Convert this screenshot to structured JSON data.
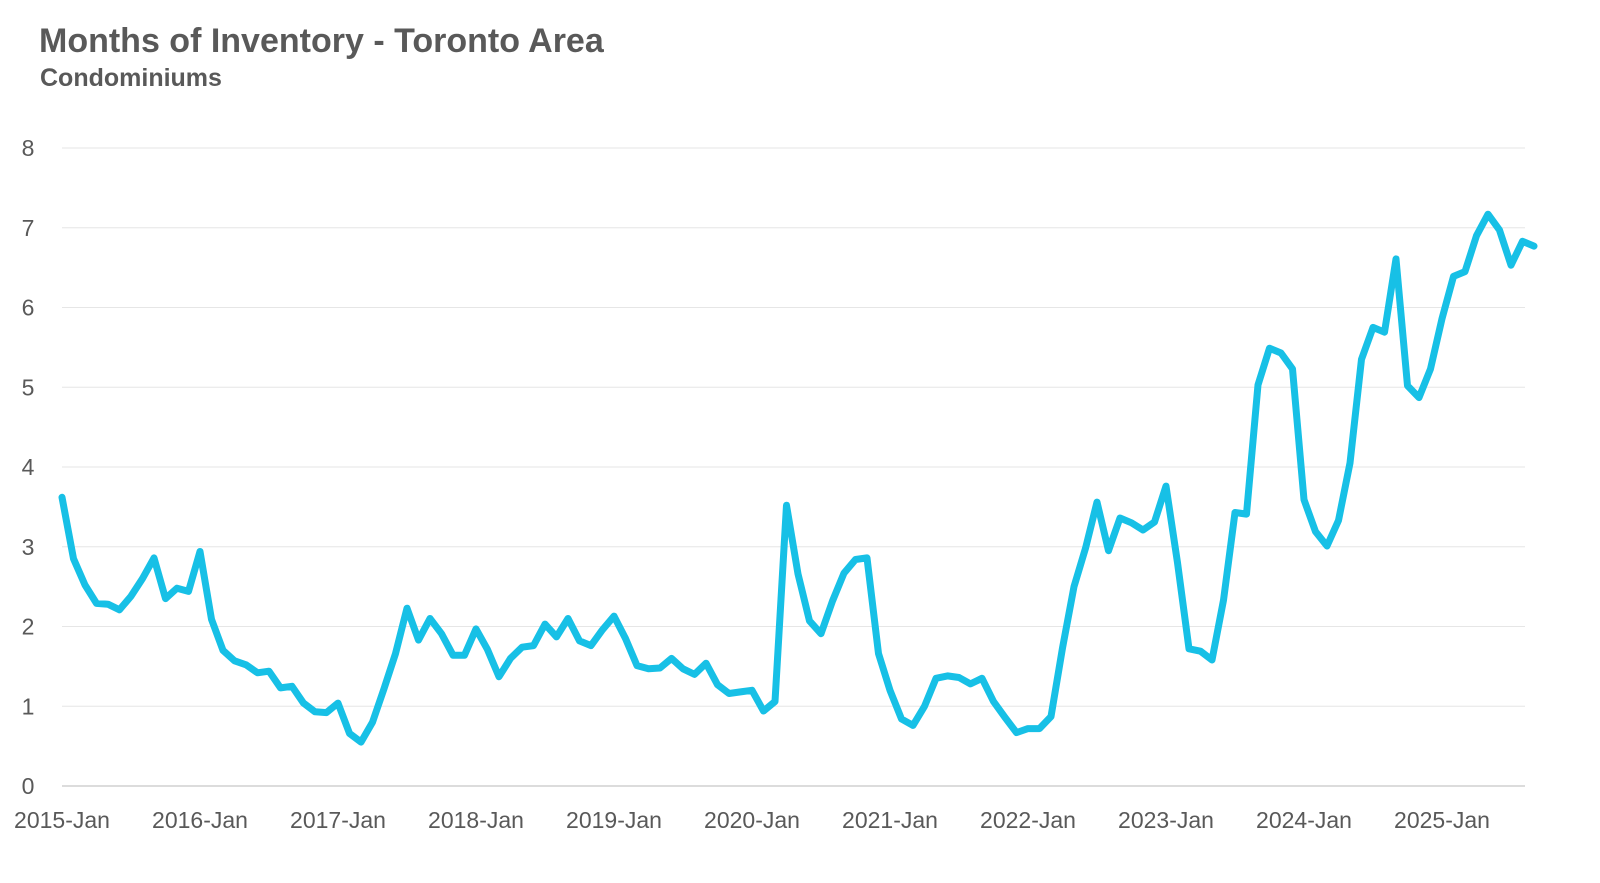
{
  "chart_data": {
    "type": "line",
    "title": "Months of Inventory - Toronto Area",
    "subtitle": "Condominiums",
    "xlabel": "",
    "ylabel": "",
    "ylim": [
      0,
      8
    ],
    "yticks": [
      0,
      1,
      2,
      3,
      4,
      5,
      6,
      7,
      8
    ],
    "xtick_labels": [
      "2015-Jan",
      "2016-Jan",
      "2017-Jan",
      "2018-Jan",
      "2019-Jan",
      "2020-Jan",
      "2021-Jan",
      "2022-Jan",
      "2023-Jan",
      "2024-Jan",
      "2025-Jan"
    ],
    "x_start": "2015-Jan",
    "grid": true,
    "legend": "none",
    "colors": {
      "line": "#17c0e6",
      "text": "#595959",
      "grid": "#e6e6e6"
    },
    "series": [
      {
        "values": [
          3.62,
          2.85,
          2.52,
          2.29,
          2.28,
          2.21,
          2.38,
          2.6,
          2.86,
          2.35,
          2.48,
          2.44,
          2.94,
          2.09,
          1.7,
          1.57,
          1.52,
          1.42,
          1.44,
          1.23,
          1.25,
          1.04,
          0.93,
          0.92,
          1.04,
          0.66,
          0.55,
          0.8,
          1.22,
          1.66,
          2.23,
          1.83,
          2.1,
          1.91,
          1.64,
          1.64,
          1.97,
          1.71,
          1.37,
          1.6,
          1.74,
          1.76,
          2.03,
          1.87,
          2.1,
          1.82,
          1.76,
          1.96,
          2.13,
          1.85,
          1.51,
          1.47,
          1.48,
          1.6,
          1.47,
          1.4,
          1.54,
          1.27,
          1.16,
          1.18,
          1.2,
          0.94,
          1.06,
          3.52,
          2.66,
          2.07,
          1.91,
          2.32,
          2.67,
          2.84,
          2.86,
          1.66,
          1.2,
          0.84,
          0.76,
          1.0,
          1.35,
          1.38,
          1.36,
          1.28,
          1.35,
          1.06,
          0.86,
          0.67,
          0.72,
          0.72,
          0.87,
          1.73,
          2.5,
          2.98,
          3.56,
          2.95,
          3.36,
          3.3,
          3.21,
          3.31,
          3.76,
          2.8,
          1.72,
          1.69,
          1.58,
          2.33,
          3.43,
          3.41,
          5.03,
          5.49,
          5.43,
          5.23,
          3.59,
          3.19,
          3.01,
          3.33,
          4.05,
          5.35,
          5.75,
          5.69,
          6.61,
          5.02,
          4.87,
          5.23,
          5.86,
          6.39,
          6.45,
          6.9,
          7.17,
          6.97,
          6.53,
          6.83,
          6.77
        ]
      }
    ]
  }
}
